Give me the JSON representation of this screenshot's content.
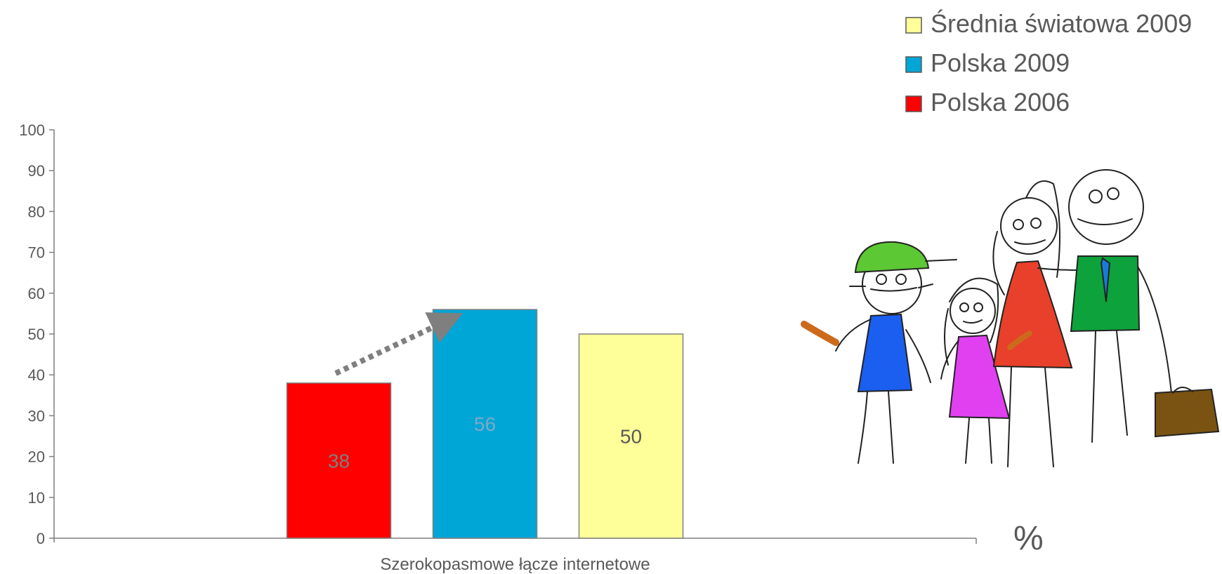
{
  "chart_data": {
    "type": "bar",
    "categories": [
      "Szerokopasmowe łącze internetowe"
    ],
    "series": [
      {
        "name": "Polska 2006",
        "values": [
          38
        ],
        "color": "#ff0000",
        "label_color": "#7f7f7f"
      },
      {
        "name": "Polska 2009",
        "values": [
          56
        ],
        "color": "#00a6d6",
        "label_color": "#7fa8c8"
      },
      {
        "name": "Średnia światowa 2009",
        "values": [
          50
        ],
        "color": "#ffff99",
        "label_color": "#595959"
      }
    ],
    "legend_order": [
      "Średnia światowa 2009",
      "Polska 2009",
      "Polska 2006"
    ],
    "legend_position": "top-right",
    "unit_label": "%",
    "ylim": [
      0,
      100
    ],
    "yticks": [
      0,
      10,
      20,
      30,
      40,
      50,
      60,
      70,
      80,
      90,
      100
    ],
    "grid": false,
    "annotation": "dotted-arrow-rising",
    "illustration": "family-drawing"
  }
}
